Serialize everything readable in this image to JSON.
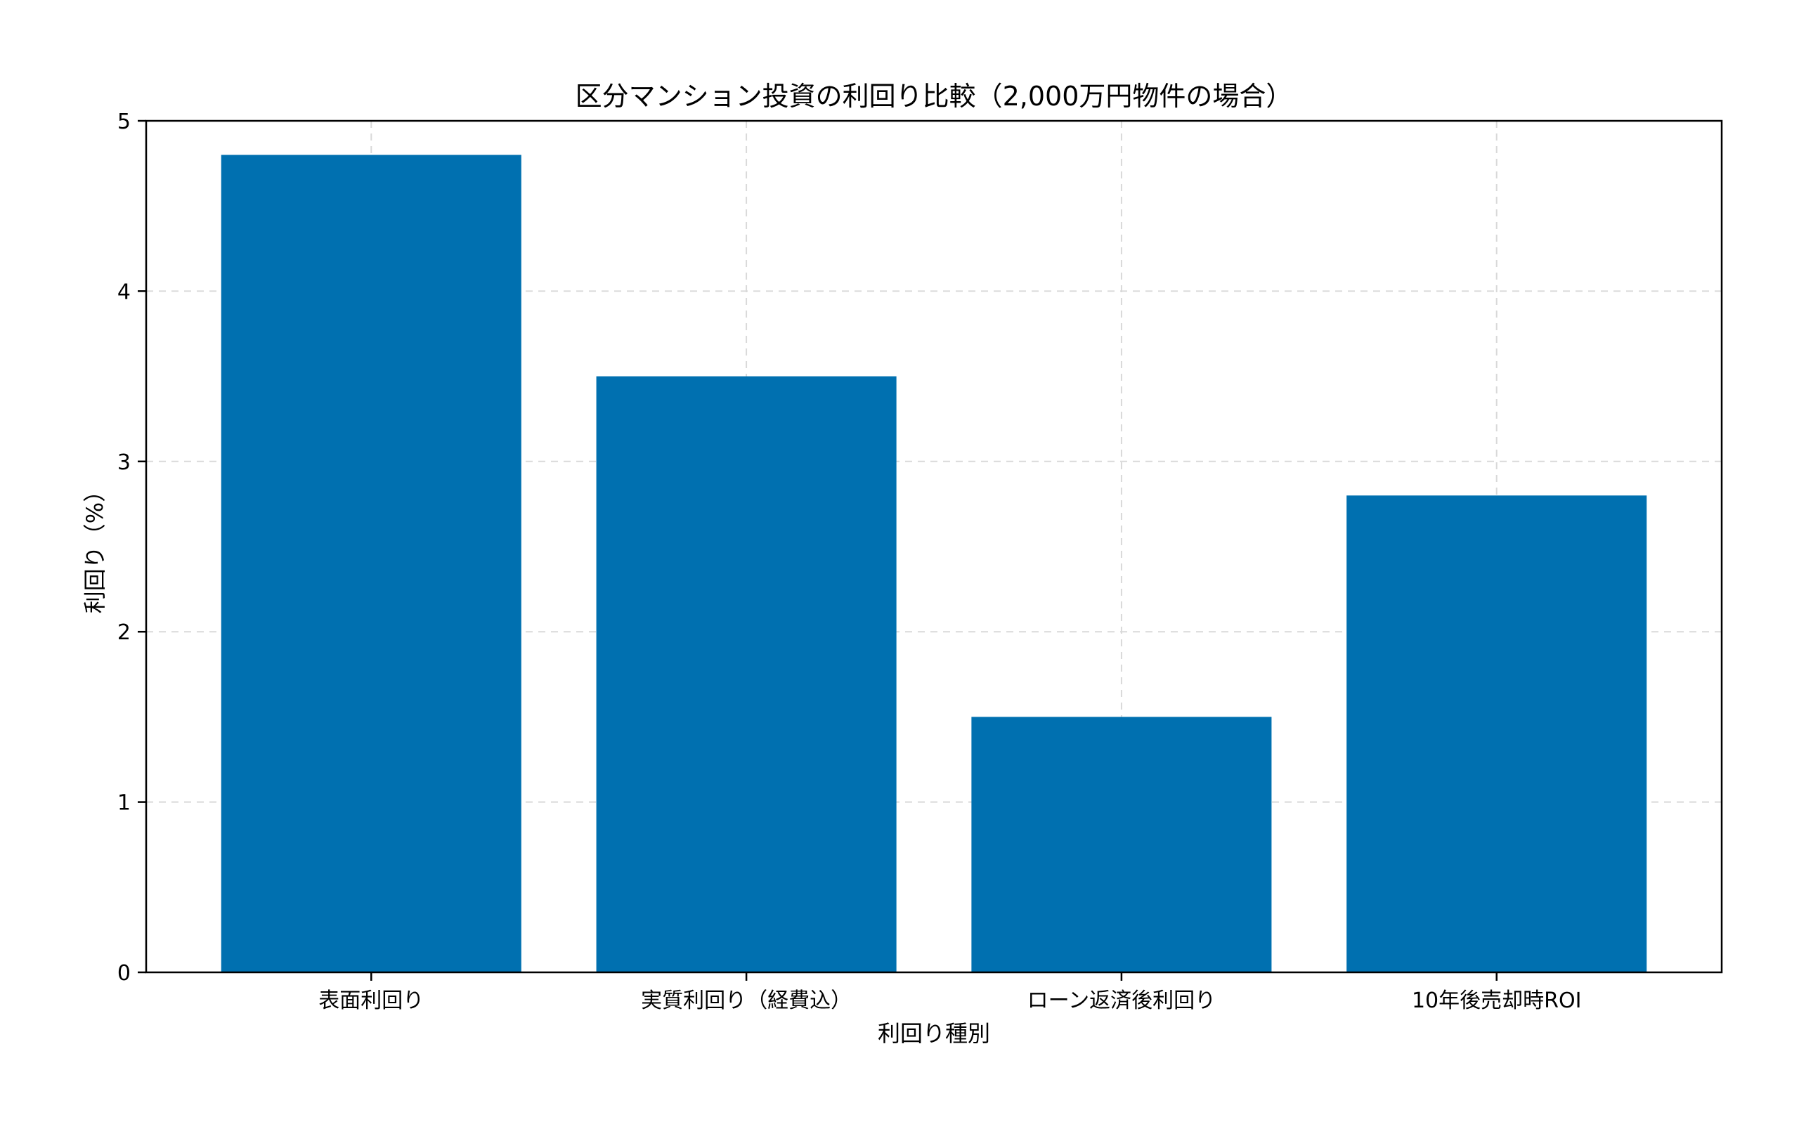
{
  "chart_data": {
    "type": "bar",
    "title": "区分マンション投資の利回り比較（2,000万円物件の場合）",
    "xlabel": "利回り種別",
    "ylabel": "利回り（%）",
    "categories": [
      "表面利回り",
      "実質利回り（経費込）",
      "ローン返済後利回り",
      "10年後売却時ROI"
    ],
    "values": [
      4.8,
      3.5,
      1.5,
      2.8
    ],
    "ylim": [
      0,
      5
    ],
    "yticks": [
      "0",
      "1",
      "2",
      "3",
      "4",
      "5"
    ],
    "grid": true,
    "bar_color": "#0070b0",
    "grid_color": "#d9d9d9"
  }
}
